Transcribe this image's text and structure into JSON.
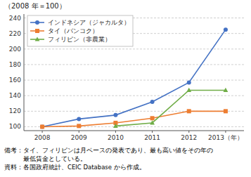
{
  "chart_data": {
    "type": "line",
    "title": "（2008 年＝100）",
    "x": [
      2008,
      2009,
      2010,
      2011,
      2012,
      2013
    ],
    "xlim": [
      2007.5,
      2013.5
    ],
    "xticks": [
      2008,
      2009,
      2010,
      2011,
      2012,
      {
        "value": 2013,
        "label": "2013（年）"
      }
    ],
    "ylim": [
      95,
      245
    ],
    "yticks": [
      100,
      120,
      140,
      160,
      180,
      200,
      220,
      240
    ],
    "grid": true,
    "legend": "upper left",
    "series": [
      {
        "name": "インドネシア（ジャカルタ）",
        "color": "#4472c4",
        "marker": "circle",
        "values": [
          100,
          110,
          115,
          132,
          157,
          225
        ]
      },
      {
        "name": "タイ（バンコク）",
        "color": "#ed7d31",
        "marker": "square",
        "values": [
          100,
          101,
          105,
          111,
          120,
          120
        ]
      },
      {
        "name": "フィリピン（非農業）",
        "color": "#70ad47",
        "marker": "triangle",
        "values": [
          null,
          null,
          101,
          105,
          147,
          147
        ]
      }
    ],
    "annotations": [
      "備考：タイ、フィリピンは月ベースの発表であり、最も高い値をその年の",
      "　　　最低賃金としている。",
      "資料：各国政府統計、CEIC Database から作成。"
    ]
  }
}
